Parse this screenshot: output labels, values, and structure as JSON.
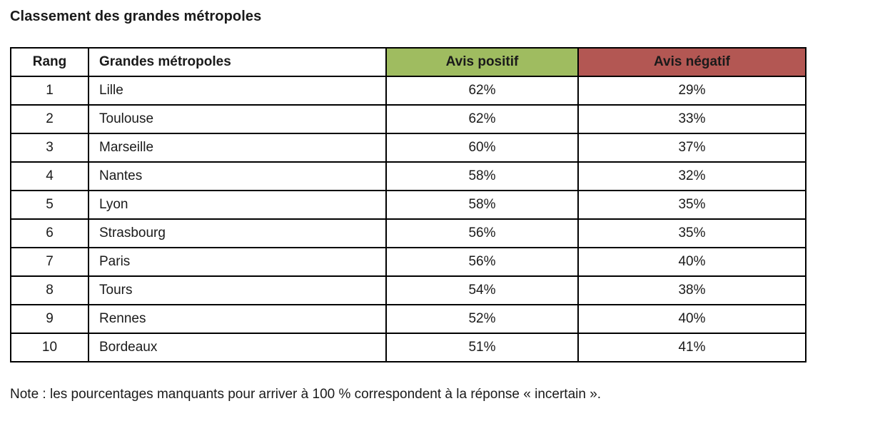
{
  "page": {
    "title": "Classement des grandes métropoles",
    "note": "Note : les pourcentages manquants pour arriver à 100 % correspondent à la réponse « incertain »."
  },
  "table": {
    "headers": {
      "rank": "Rang",
      "city": "Grandes métropoles",
      "positive": "Avis positif",
      "negative": "Avis négatif"
    },
    "header_colors": {
      "positive_bg": "#9fbc60",
      "negative_bg": "#b35753"
    },
    "rows": [
      {
        "rank": "1",
        "city": "Lille",
        "positive": "62%",
        "negative": "29%"
      },
      {
        "rank": "2",
        "city": "Toulouse",
        "positive": "62%",
        "negative": "33%"
      },
      {
        "rank": "3",
        "city": "Marseille",
        "positive": "60%",
        "negative": "37%"
      },
      {
        "rank": "4",
        "city": "Nantes",
        "positive": "58%",
        "negative": "32%"
      },
      {
        "rank": "5",
        "city": "Lyon",
        "positive": "58%",
        "negative": "35%"
      },
      {
        "rank": "6",
        "city": "Strasbourg",
        "positive": "56%",
        "negative": "35%"
      },
      {
        "rank": "7",
        "city": "Paris",
        "positive": "56%",
        "negative": "40%"
      },
      {
        "rank": "8",
        "city": "Tours",
        "positive": "54%",
        "negative": "38%"
      },
      {
        "rank": "9",
        "city": "Rennes",
        "positive": "52%",
        "negative": "40%"
      },
      {
        "rank": "10",
        "city": "Bordeaux",
        "positive": "51%",
        "negative": "41%"
      }
    ]
  }
}
